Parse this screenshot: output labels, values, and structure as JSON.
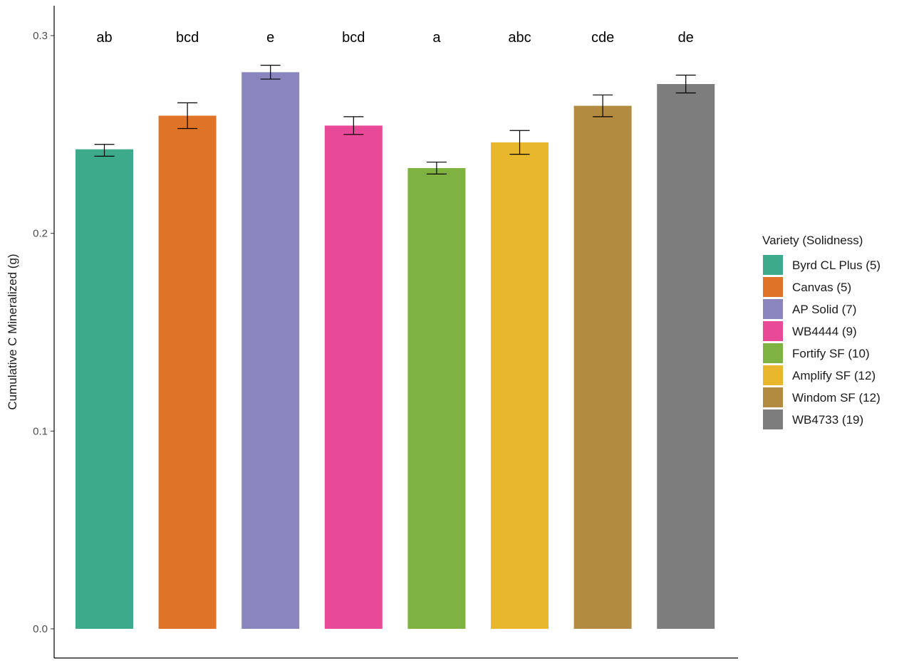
{
  "chart_data": {
    "type": "bar",
    "title": "",
    "xlabel": "",
    "ylabel": "Cumulative C Mineralized (g)",
    "ylim": [
      0,
      0.315
    ],
    "yticks": [
      "0.0",
      "0.1",
      "0.2",
      "0.3"
    ],
    "ytick_values": [
      0.0,
      0.1,
      0.2,
      0.3
    ],
    "grid": false,
    "legend": {
      "title": "Variety (Solidness)",
      "position": "right"
    },
    "categories": [
      "Byrd CL Plus (5)",
      "Canvas (5)",
      "AP Solid (7)",
      "WB4444 (9)",
      "Fortify SF (10)",
      "Amplify SF (12)",
      "Windom SF (12)",
      "WB4733 (19)"
    ],
    "values": [
      0.2425,
      0.2595,
      0.2815,
      0.2545,
      0.233,
      0.246,
      0.2645,
      0.2755
    ],
    "error_low": [
      0.239,
      0.253,
      0.278,
      0.25,
      0.23,
      0.24,
      0.259,
      0.271
    ],
    "error_high": [
      0.245,
      0.266,
      0.285,
      0.259,
      0.236,
      0.252,
      0.27,
      0.28
    ],
    "significance_letters": [
      "ab",
      "bcd",
      "e",
      "bcd",
      "a",
      "abc",
      "cde",
      "de"
    ],
    "colors": [
      "#3dab8b",
      "#df7429",
      "#8a85bd",
      "#e84a97",
      "#7eb341",
      "#e9b72c",
      "#b28a40",
      "#7d7d7d"
    ]
  }
}
